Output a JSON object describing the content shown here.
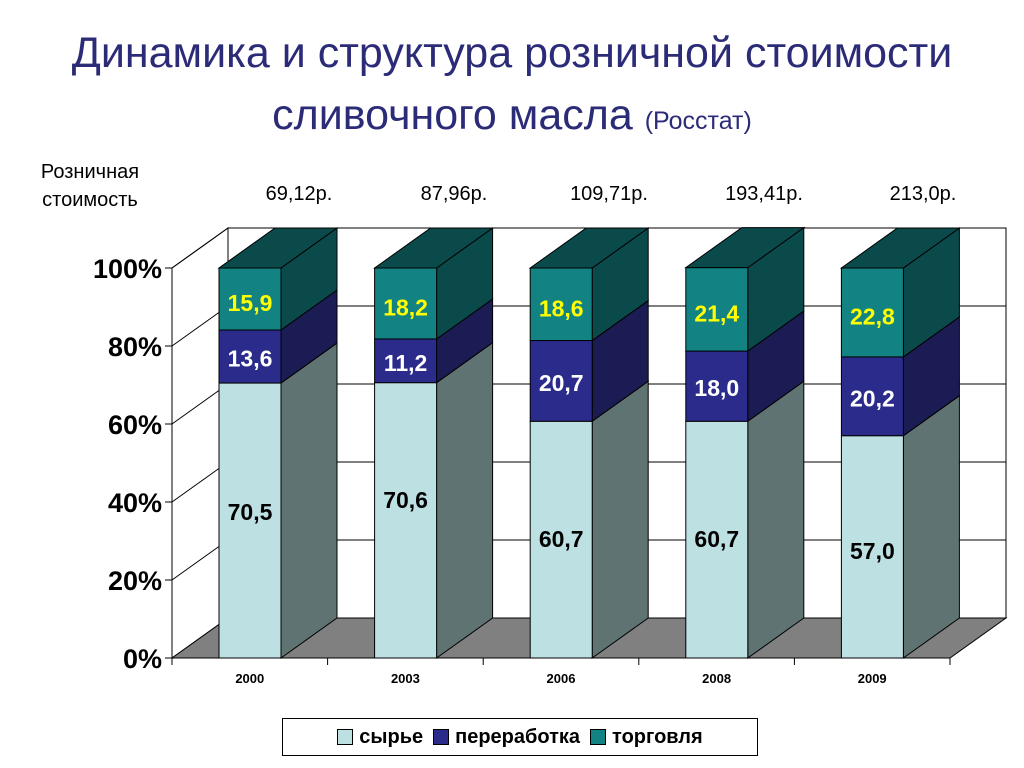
{
  "title": {
    "line1": "Динамика и структура розничной стоимости",
    "line2": "сливочного масла",
    "source": "(Росстат)"
  },
  "retail": {
    "label_line1": "Розничная",
    "label_line2": "стоимость",
    "values": [
      "69,12р.",
      "87,96р.",
      "109,71р.",
      "193,41р.",
      "213,0р."
    ]
  },
  "colors": {
    "raw": "#bde0e3",
    "raw_side": "#5f7372",
    "processing": "#2b2b8c",
    "processing_side": "#1c1c55",
    "trade": "#128382",
    "trade_side": "#0b4a4a",
    "floor": "#808080",
    "trade_label": "#ffff00",
    "processing_label": "#ffffff"
  },
  "chart_data": {
    "type": "bar",
    "stacked": true,
    "percent": true,
    "categories": [
      "2000",
      "2003",
      "2006",
      "2008",
      "2009"
    ],
    "series": [
      {
        "name": "сырье",
        "values": [
          70.5,
          70.6,
          60.7,
          60.7,
          57.0
        ],
        "labels": [
          "70,5",
          "70,6",
          "60,7",
          "60,7",
          "57,0"
        ]
      },
      {
        "name": "переработка",
        "values": [
          13.6,
          11.2,
          20.7,
          18.0,
          20.2
        ],
        "labels": [
          "13,6",
          "11,2",
          "20,7",
          "18,0",
          "20,2"
        ]
      },
      {
        "name": "торговля",
        "values": [
          15.9,
          18.2,
          18.6,
          21.4,
          22.8
        ],
        "labels": [
          "15,9",
          "18,2",
          "18,6",
          "21,4",
          "22,8"
        ]
      }
    ],
    "yticks": [
      "0%",
      "20%",
      "40%",
      "60%",
      "80%",
      "100%"
    ],
    "ylim": [
      0,
      100
    ],
    "grid": true,
    "legend": "bottom",
    "three_d": true
  }
}
